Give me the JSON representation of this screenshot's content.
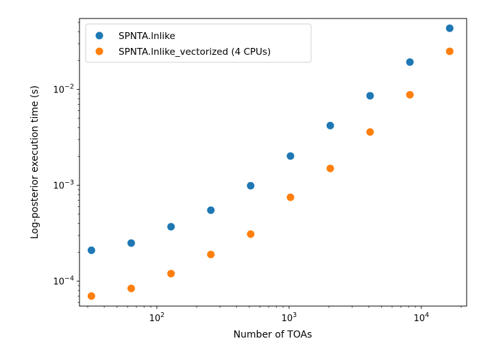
{
  "chart_data": {
    "type": "scatter",
    "title": "",
    "xlabel": "Number of TOAs",
    "ylabel": "Log-posterior execution time (s)",
    "xscale": "log",
    "yscale": "log",
    "xlim": [
      26,
      22000
    ],
    "ylim": [
      5.5e-05,
      0.055
    ],
    "grid": false,
    "legend_position": "top-left",
    "x_ticks": [
      {
        "value": 100,
        "base": "10",
        "exp": "2"
      },
      {
        "value": 1000,
        "base": "10",
        "exp": "3"
      },
      {
        "value": 10000,
        "base": "10",
        "exp": "4"
      }
    ],
    "y_ticks": [
      {
        "value": 0.0001,
        "base": "10",
        "exp": "−4"
      },
      {
        "value": 0.001,
        "base": "10",
        "exp": "−3"
      },
      {
        "value": 0.01,
        "base": "10",
        "exp": "−2"
      }
    ],
    "x": [
      32,
      64,
      128,
      256,
      512,
      1024,
      2048,
      4096,
      8192,
      16384
    ],
    "series": [
      {
        "name": "SPNTA.lnlike",
        "color": "#1f77b4",
        "values": [
          0.00021,
          0.00025,
          0.00037,
          0.00055,
          0.00099,
          0.00202,
          0.0042,
          0.0086,
          0.0193,
          0.0435
        ]
      },
      {
        "name": "SPNTA.lnlike_vectorized (4 CPUs)",
        "color": "#ff7f0e",
        "values": [
          7e-05,
          8.4e-05,
          0.00012,
          0.00019,
          0.00031,
          0.00075,
          0.0015,
          0.0036,
          0.0088,
          0.025
        ]
      }
    ]
  }
}
